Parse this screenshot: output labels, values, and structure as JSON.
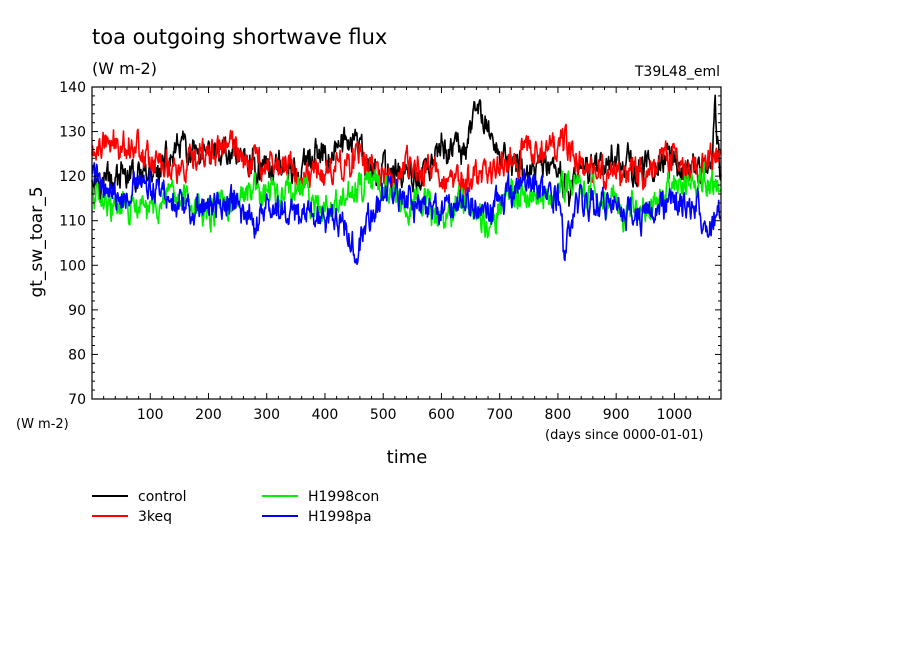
{
  "header": {
    "title": "toa outgoing shortwave flux",
    "units": "(W m-2)",
    "run_label": "T39L48_eml"
  },
  "chart_data": {
    "type": "line",
    "title": "toa outgoing shortwave flux",
    "subtitle": "(W m-2)",
    "ylabel": "gt_sw_toar_5",
    "yunits": "(W m-2)",
    "xlabel": "time",
    "xunits": "(days since 0000-01-01)",
    "xlim": [
      0,
      1080
    ],
    "ylim": [
      70,
      140
    ],
    "x_ticks": [
      100,
      200,
      300,
      400,
      500,
      600,
      700,
      800,
      900,
      1000
    ],
    "y_ticks": [
      70,
      80,
      90,
      100,
      110,
      120,
      130,
      140
    ],
    "grid": false,
    "legend_position": "bottom-left",
    "series": [
      {
        "name": "control",
        "color": "#000000",
        "x": [
          0,
          40,
          80,
          120,
          150,
          170,
          200,
          240,
          280,
          320,
          360,
          400,
          440,
          480,
          520,
          560,
          600,
          640,
          665,
          700,
          740,
          780,
          820,
          860,
          900,
          940,
          980,
          1020,
          1060,
          1070,
          1080
        ],
        "values": [
          121,
          120,
          119,
          121,
          127,
          124,
          124,
          126,
          122,
          123,
          121,
          125,
          128,
          121,
          122,
          119,
          126,
          126,
          134,
          125,
          121,
          121,
          118,
          122,
          125,
          121,
          124,
          122,
          120,
          133,
          121
        ]
      },
      {
        "name": "3keq",
        "color": "#ff0000",
        "x": [
          0,
          40,
          80,
          120,
          160,
          200,
          235,
          270,
          320,
          360,
          400,
          440,
          480,
          520,
          560,
          600,
          640,
          680,
          720,
          760,
          780,
          820,
          860,
          900,
          940,
          980,
          1020,
          1060,
          1080
        ],
        "values": [
          125,
          127,
          127,
          123,
          121,
          125,
          127,
          124,
          123,
          120,
          122,
          124,
          122,
          120,
          122,
          120,
          118,
          122,
          124,
          126,
          129,
          125,
          121,
          121,
          120,
          125,
          121,
          123,
          124
        ]
      },
      {
        "name": "H1998con",
        "color": "#00ee00",
        "x": [
          0,
          40,
          80,
          120,
          160,
          200,
          240,
          280,
          320,
          360,
          400,
          440,
          480,
          520,
          560,
          600,
          640,
          680,
          720,
          760,
          800,
          840,
          880,
          920,
          960,
          1000,
          1040,
          1080
        ],
        "values": [
          116,
          113,
          112,
          113,
          115,
          112,
          114,
          116,
          115,
          117,
          112,
          115,
          118,
          117,
          113,
          111,
          114,
          110,
          117,
          115,
          118,
          117,
          115,
          112,
          114,
          118,
          118,
          118
        ]
      },
      {
        "name": "H1998pa",
        "color": "#0000ff",
        "x": [
          0,
          40,
          80,
          120,
          160,
          200,
          240,
          280,
          320,
          360,
          400,
          440,
          450,
          480,
          520,
          560,
          600,
          640,
          680,
          720,
          760,
          800,
          810,
          840,
          880,
          920,
          960,
          1000,
          1040,
          1060,
          1080
        ],
        "values": [
          121,
          116,
          117,
          117,
          113,
          112,
          114,
          110,
          113,
          112,
          112,
          108,
          103,
          113,
          116,
          112,
          112,
          115,
          112,
          115,
          117,
          116,
          104,
          115,
          114,
          112,
          112,
          114,
          112,
          107,
          112
        ]
      }
    ]
  }
}
